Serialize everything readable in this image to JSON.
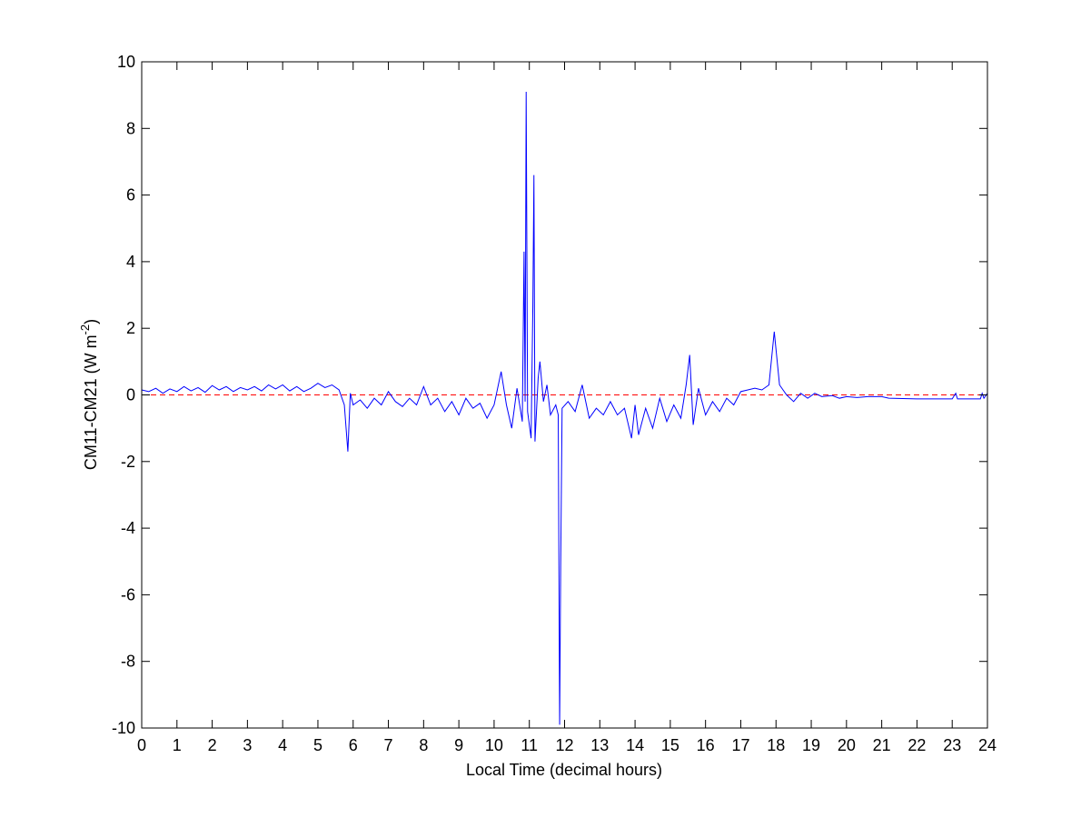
{
  "chart_data": {
    "type": "line",
    "xlabel": "Local Time (decimal hours)",
    "ylabel": {
      "base": "CM11-CM21 (W m",
      "superscript": "-2",
      "end": ")"
    },
    "xlim": [
      0,
      24
    ],
    "xticks": [
      0,
      1,
      2,
      3,
      4,
      5,
      6,
      7,
      8,
      9,
      10,
      11,
      12,
      13,
      14,
      15,
      16,
      17,
      18,
      19,
      20,
      21,
      22,
      23,
      24
    ],
    "ylim": [
      -10,
      10
    ],
    "yticks": [
      -10,
      -8,
      -6,
      -4,
      -2,
      0,
      2,
      4,
      6,
      8,
      10
    ],
    "grid": false,
    "reference_line": {
      "value": 0,
      "color": "#ff0000",
      "style": "dashed"
    },
    "x": [
      0,
      0.2,
      0.4,
      0.6,
      0.8,
      1.0,
      1.2,
      1.4,
      1.6,
      1.8,
      2.0,
      2.2,
      2.4,
      2.6,
      2.8,
      3.0,
      3.2,
      3.4,
      3.6,
      3.8,
      4.0,
      4.2,
      4.4,
      4.6,
      4.8,
      5.0,
      5.2,
      5.4,
      5.6,
      5.75,
      5.85,
      5.92,
      6.0,
      6.2,
      6.4,
      6.6,
      6.8,
      7.0,
      7.2,
      7.4,
      7.6,
      7.8,
      8.0,
      8.2,
      8.4,
      8.6,
      8.8,
      9.0,
      9.2,
      9.4,
      9.6,
      9.8,
      10.0,
      10.2,
      10.35,
      10.5,
      10.65,
      10.8,
      10.85,
      10.88,
      10.91,
      10.95,
      11.05,
      11.1,
      11.13,
      11.16,
      11.25,
      11.3,
      11.4,
      11.5,
      11.6,
      11.75,
      11.82,
      11.86,
      11.89,
      11.93,
      12.1,
      12.3,
      12.5,
      12.7,
      12.9,
      13.1,
      13.3,
      13.5,
      13.7,
      13.9,
      14.0,
      14.1,
      14.3,
      14.5,
      14.7,
      14.9,
      15.1,
      15.3,
      15.45,
      15.55,
      15.65,
      15.8,
      16.0,
      16.2,
      16.4,
      16.6,
      16.8,
      17.0,
      17.2,
      17.4,
      17.6,
      17.8,
      17.95,
      18.1,
      18.3,
      18.5,
      18.7,
      18.9,
      19.1,
      19.3,
      19.6,
      19.8,
      20.0,
      20.3,
      20.6,
      21.0,
      21.2,
      22.0,
      23.0,
      23.1,
      23.15,
      23.8,
      23.85,
      23.9,
      24.0
    ],
    "series": [
      {
        "color": "#0000ff",
        "values": [
          0.15,
          0.1,
          0.2,
          0.05,
          0.18,
          0.1,
          0.25,
          0.12,
          0.22,
          0.08,
          0.28,
          0.15,
          0.25,
          0.1,
          0.22,
          0.15,
          0.25,
          0.12,
          0.3,
          0.18,
          0.3,
          0.12,
          0.25,
          0.1,
          0.2,
          0.35,
          0.22,
          0.3,
          0.15,
          -0.3,
          -1.7,
          0.05,
          -0.3,
          -0.15,
          -0.4,
          -0.1,
          -0.3,
          0.1,
          -0.2,
          -0.35,
          -0.1,
          -0.3,
          0.25,
          -0.3,
          -0.1,
          -0.5,
          -0.2,
          -0.6,
          -0.1,
          -0.4,
          -0.25,
          -0.7,
          -0.3,
          0.7,
          -0.3,
          -1.0,
          0.2,
          -0.8,
          4.3,
          -0.2,
          9.1,
          -0.5,
          -1.3,
          2.7,
          6.6,
          -1.4,
          0.5,
          1.0,
          -0.2,
          0.3,
          -0.6,
          -0.3,
          -0.6,
          -9.9,
          -5.1,
          -0.4,
          -0.2,
          -0.5,
          0.3,
          -0.7,
          -0.4,
          -0.6,
          -0.2,
          -0.6,
          -0.4,
          -1.3,
          -0.3,
          -1.2,
          -0.4,
          -1.0,
          -0.1,
          -0.8,
          -0.3,
          -0.7,
          0.3,
          1.2,
          -0.9,
          0.2,
          -0.6,
          -0.2,
          -0.5,
          -0.1,
          -0.3,
          0.1,
          0.15,
          0.2,
          0.15,
          0.3,
          1.9,
          0.3,
          0.0,
          -0.2,
          0.05,
          -0.1,
          0.05,
          -0.05,
          -0.02,
          -0.1,
          -0.05,
          -0.08,
          -0.05,
          -0.05,
          -0.1,
          -0.12,
          -0.12,
          0.05,
          -0.12,
          -0.12,
          0.05,
          -0.1,
          0.05
        ]
      }
    ]
  }
}
